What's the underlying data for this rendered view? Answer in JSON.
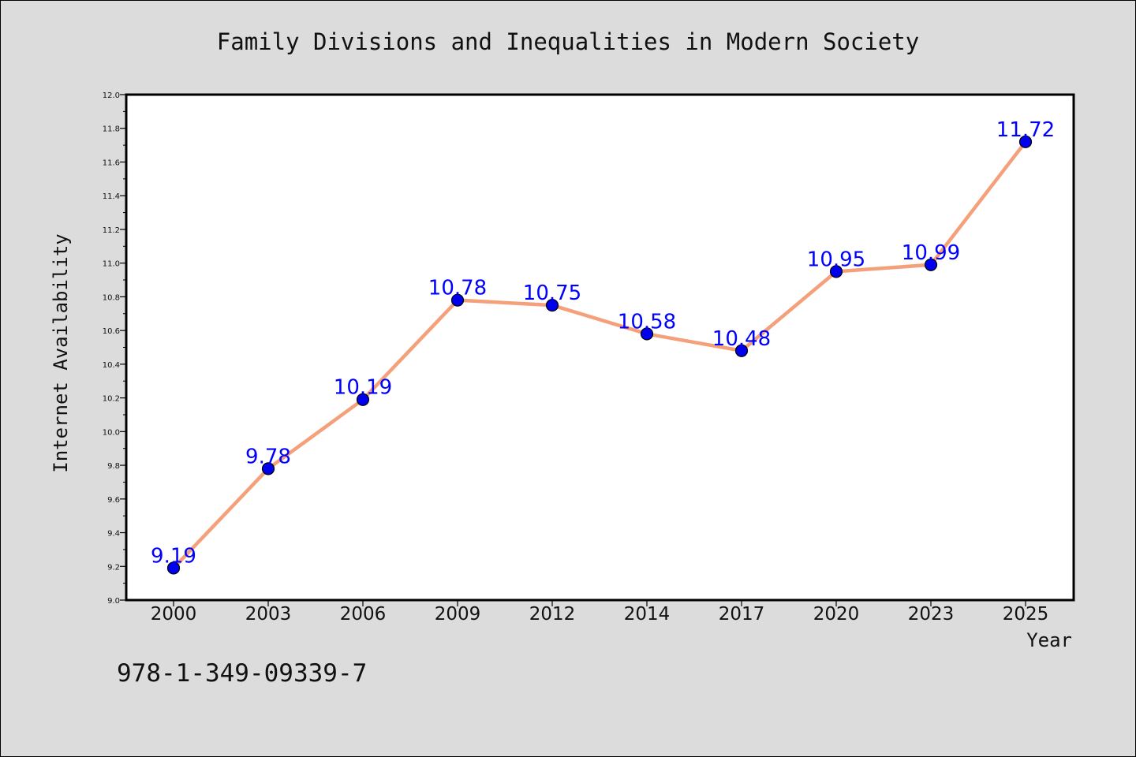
{
  "chart_data": {
    "type": "line",
    "title": "Family Divisions and Inequalities in Modern Society",
    "xlabel": "Year",
    "ylabel": "Internet Availability",
    "categories": [
      "2000",
      "2003",
      "2006",
      "2009",
      "2012",
      "2014",
      "2017",
      "2020",
      "2023",
      "2025"
    ],
    "values": [
      9.19,
      9.78,
      10.19,
      10.78,
      10.75,
      10.58,
      10.48,
      10.95,
      10.99,
      11.72
    ],
    "data_labels": [
      "9.19",
      "9.78",
      "10.19",
      "10.78",
      "10.75",
      "10.58",
      "10.48",
      "10.95",
      "10.99",
      "11.72"
    ],
    "ylim": [
      9.0,
      12.0
    ],
    "yticks": [
      "9.0",
      "9.2",
      "9.4",
      "9.6",
      "9.8",
      "10.0",
      "10.2",
      "10.4",
      "10.6",
      "10.8",
      "11.0",
      "11.2",
      "11.4",
      "11.6",
      "11.8",
      "12.0"
    ],
    "grid": false,
    "legend": "none",
    "colors": {
      "line": "#f4a07a",
      "marker": "#0000ee",
      "label": "#0000ff",
      "plot_bg": "#ffffff",
      "figure_bg": "#dcdcdc"
    }
  },
  "footer": {
    "isbn": "978-1-349-09339-7"
  }
}
